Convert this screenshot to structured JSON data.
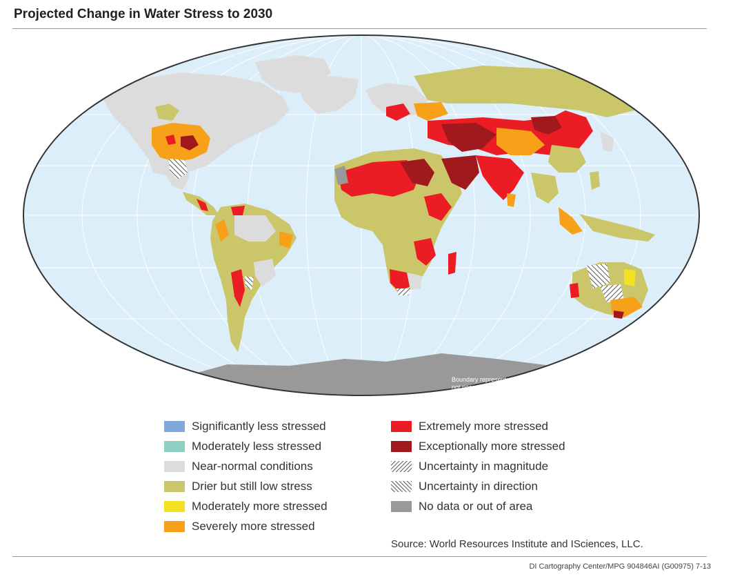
{
  "title": "Projected Change in Water Stress to 2030",
  "map": {
    "boundary_note_line1": "Boundary representation is",
    "boundary_note_line2": "not necessarily authoritative."
  },
  "legend": {
    "left": [
      {
        "label": "Significantly less stressed",
        "color": "#7fa9dc"
      },
      {
        "label": "Moderately less stressed",
        "color": "#8fd0c4"
      },
      {
        "label": "Near-normal conditions",
        "color": "#dcdcdc"
      },
      {
        "label": "Drier but still low stress",
        "color": "#cbc66a"
      },
      {
        "label": "Moderately more stressed",
        "color": "#f3e222"
      },
      {
        "label": "Severely more stressed",
        "color": "#f7a11a"
      }
    ],
    "right": [
      {
        "label": "Extremely more stressed",
        "color": "#ec1c24"
      },
      {
        "label": "Exceptionally more stressed",
        "color": "#a0191d"
      },
      {
        "label": "Uncertainty in magnitude",
        "color": "hatch-fwd"
      },
      {
        "label": "Uncertainty in direction",
        "color": "hatch-back"
      },
      {
        "label": "No data or out of area",
        "color": "#999999"
      }
    ]
  },
  "source": "Source: World Resources Institute and ISciences, LLC.",
  "credit": "DI Cartography Center/MPG 904846AI (G00975) 7-13",
  "colors": {
    "ocean": "#dceefa",
    "outline": "#333333",
    "graticule": "#ffffff"
  }
}
